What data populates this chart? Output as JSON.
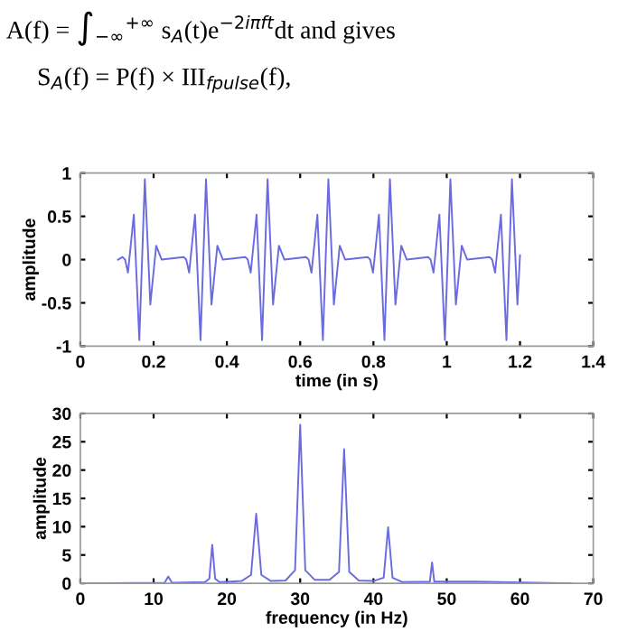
{
  "chart_data": [
    {
      "type": "line",
      "xlabel": "time (in s)",
      "ylabel": "amplitude",
      "annotations": [
        "A(f) = ∫$_{−∞}$$^{+∞}$ s$_{A}$(t)e$^{−2iπft}$dt and gives",
        "S$_{A}$(f) = P(f) × III$_{fpulse}$(f),"
      ],
      "xlim": [
        0,
        1.4
      ],
      "ylim": [
        -1,
        1
      ],
      "xticks": [
        0,
        0.2,
        0.4,
        0.6,
        0.8,
        1,
        1.2,
        1.4
      ],
      "yticks": [
        -1,
        -0.5,
        0,
        0.5,
        1
      ],
      "grid": false,
      "series": [
        {
          "color": "#6b6be0",
          "x": [
            0.103,
            0.115,
            0.122,
            0.13,
            0.146,
            0.161,
            0.176,
            0.191,
            0.207,
            0.222,
            0.282,
            0.289,
            0.297,
            0.313,
            0.328,
            0.343,
            0.358,
            0.374,
            0.389,
            0.45,
            0.457,
            0.465,
            0.481,
            0.496,
            0.511,
            0.526,
            0.542,
            0.557,
            0.616,
            0.623,
            0.631,
            0.647,
            0.662,
            0.677,
            0.692,
            0.708,
            0.723,
            0.784,
            0.791,
            0.799,
            0.815,
            0.83,
            0.845,
            0.86,
            0.876,
            0.891,
            0.949,
            0.956,
            0.964,
            0.98,
            0.995,
            1.01,
            1.025,
            1.041,
            1.056,
            1.117,
            1.124,
            1.132,
            1.148,
            1.163,
            1.178,
            1.193,
            1.2
          ],
          "values": [
            0,
            0.03,
            0,
            -0.15,
            0.52,
            -0.93,
            0.93,
            -0.52,
            0.16,
            0,
            0.03,
            0,
            -0.15,
            0.52,
            -0.93,
            0.93,
            -0.52,
            0.16,
            0,
            0.03,
            0,
            -0.15,
            0.52,
            -0.93,
            0.93,
            -0.52,
            0.16,
            0,
            0.03,
            0,
            -0.15,
            0.52,
            -0.93,
            0.93,
            -0.52,
            0.16,
            0,
            0.03,
            0,
            -0.15,
            0.52,
            -0.93,
            0.93,
            -0.52,
            0.16,
            0,
            0.03,
            0,
            -0.15,
            0.52,
            -0.93,
            0.93,
            -0.52,
            0.16,
            0,
            0.03,
            0,
            -0.15,
            0.52,
            -0.93,
            0.93,
            -0.52,
            0.05
          ]
        }
      ]
    },
    {
      "type": "line",
      "xlabel": "frequency (in Hz)",
      "ylabel": "amplitude",
      "xlim": [
        0,
        70
      ],
      "ylim": [
        0,
        30
      ],
      "xticks": [
        0,
        10,
        20,
        30,
        40,
        50,
        60,
        70
      ],
      "yticks": [
        0,
        5,
        10,
        15,
        20,
        25,
        30
      ],
      "grid": false,
      "series": [
        {
          "color": "#6b6be0",
          "x": [
            0,
            11.5,
            12,
            12.5,
            17,
            17.6,
            18,
            18.4,
            19,
            22,
            23.3,
            24,
            24.7,
            26,
            28,
            29.3,
            30,
            30.7,
            32,
            34,
            35.3,
            36,
            36.7,
            38,
            40,
            41.4,
            42,
            42.6,
            44,
            47.7,
            48,
            48.3,
            54,
            67
          ],
          "values": [
            0,
            0.1,
            1.2,
            0.1,
            0.2,
            0.8,
            6.8,
            0.8,
            0.2,
            0.4,
            1.5,
            12.3,
            1.5,
            0.4,
            0.5,
            2.3,
            28,
            2.3,
            0.6,
            0.6,
            2.0,
            23.7,
            2.0,
            0.5,
            0.4,
            1.0,
            9.9,
            1.0,
            0.2,
            0.3,
            3.7,
            0.3,
            0.3,
            0
          ]
        }
      ]
    }
  ]
}
